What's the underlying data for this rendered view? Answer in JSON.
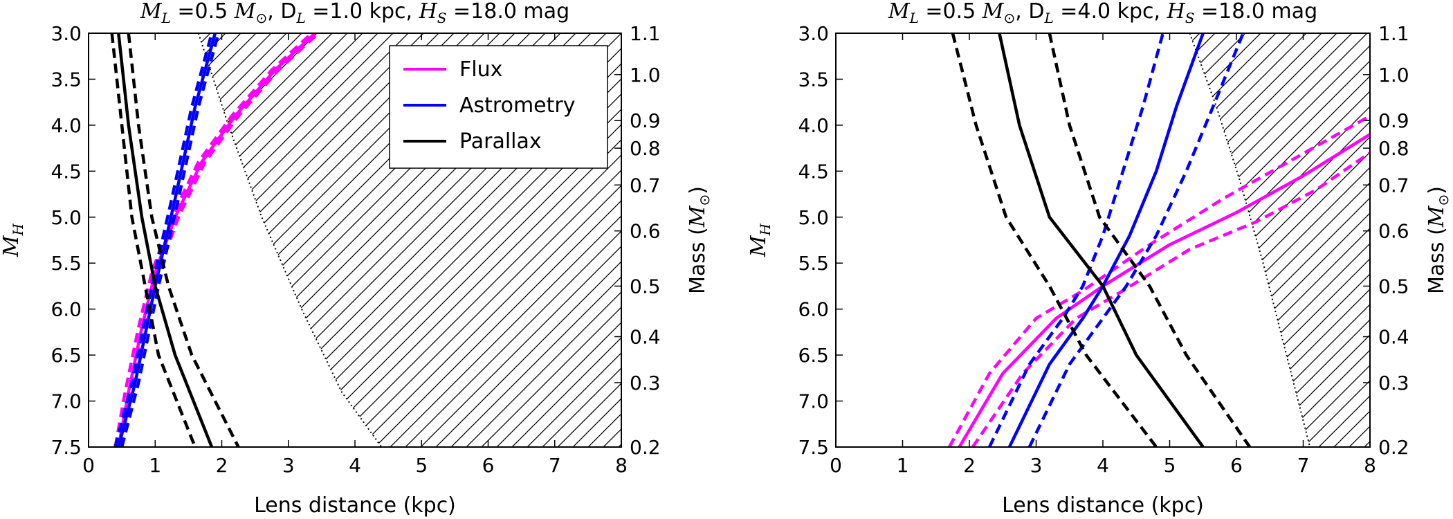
{
  "chart_data": [
    {
      "type": "line",
      "title": {
        "ml_sym": "M",
        "ml_sub": "L",
        "ml_val": " =0.5 ",
        "msun_sym": "M",
        "msun_sub": "⊙",
        "dl_sym": ", D",
        "dl_sub": "L",
        "dl_val": " =1.0 kpc, ",
        "hs_sym": "H",
        "hs_sub": "S",
        "hs_val": " =18.0 mag"
      },
      "xlabel": "Lens distance (kpc)",
      "ylabel_sym": "M",
      "ylabel_sub": "H",
      "y2label": "Mass (",
      "y2label_sym": "M",
      "y2label_sub": "⊙",
      "y2label_end": ")",
      "xlim": [
        0,
        8
      ],
      "ylim": [
        3.0,
        7.5
      ],
      "y_inverted": true,
      "x_ticks": [
        "0",
        "1",
        "2",
        "3",
        "4",
        "5",
        "6",
        "7",
        "8"
      ],
      "y_ticks": [
        "3.0",
        "3.5",
        "4.0",
        "4.5",
        "5.0",
        "5.5",
        "6.0",
        "6.5",
        "7.0",
        "7.5"
      ],
      "mass_ticks": [
        {
          "label": "1.1",
          "mh": 3.0
        },
        {
          "label": "1.0",
          "mh": 3.45
        },
        {
          "label": "0.9",
          "mh": 3.95
        },
        {
          "label": "0.8",
          "mh": 4.25
        },
        {
          "label": "0.7",
          "mh": 4.65
        },
        {
          "label": "0.6",
          "mh": 5.15
        },
        {
          "label": "0.5",
          "mh": 5.75
        },
        {
          "label": "0.4",
          "mh": 6.3
        },
        {
          "label": "0.3",
          "mh": 6.8
        },
        {
          "label": "0.2",
          "mh": 7.5
        }
      ],
      "legend": {
        "position": "upper-center",
        "entries": [
          {
            "label": "Flux",
            "color": "#ff00ff"
          },
          {
            "label": "Astrometry",
            "color": "#0000ff"
          },
          {
            "label": "Parallax",
            "color": "#000000"
          }
        ]
      },
      "excluded_region": {
        "boundary": [
          [
            1.65,
            3.0
          ],
          [
            2.1,
            4.0
          ],
          [
            2.6,
            5.0
          ],
          [
            3.2,
            6.0
          ],
          [
            3.8,
            6.9
          ],
          [
            4.4,
            7.5
          ]
        ]
      },
      "series": [
        {
          "name": "Flux",
          "color": "#ff00ff",
          "style": "solid",
          "points": [
            [
              0.45,
              7.5
            ],
            [
              0.6,
              6.9
            ],
            [
              0.8,
              6.2
            ],
            [
              1.0,
              5.6
            ],
            [
              1.3,
              5.0
            ],
            [
              1.7,
              4.4
            ],
            [
              2.2,
              3.9
            ],
            [
              2.8,
              3.4
            ],
            [
              3.4,
              3.0
            ]
          ]
        },
        {
          "name": "Flux",
          "color": "#ff00ff",
          "style": "dashed",
          "points": [
            [
              0.5,
              7.5
            ],
            [
              0.65,
              6.9
            ],
            [
              0.85,
              6.2
            ],
            [
              1.05,
              5.6
            ],
            [
              1.35,
              5.0
            ],
            [
              1.75,
              4.4
            ],
            [
              2.25,
              3.9
            ],
            [
              2.85,
              3.4
            ],
            [
              3.45,
              3.0
            ]
          ]
        },
        {
          "name": "Flux",
          "color": "#ff00ff",
          "style": "dashed",
          "points": [
            [
              0.4,
              7.5
            ],
            [
              0.55,
              6.9
            ],
            [
              0.75,
              6.2
            ],
            [
              0.95,
              5.6
            ],
            [
              1.25,
              5.0
            ],
            [
              1.65,
              4.4
            ],
            [
              2.15,
              3.9
            ],
            [
              2.75,
              3.4
            ],
            [
              3.35,
              3.0
            ]
          ]
        },
        {
          "name": "Astrometry",
          "color": "#0000ff",
          "style": "solid",
          "points": [
            [
              0.45,
              7.5
            ],
            [
              0.7,
              6.8
            ],
            [
              1.0,
              5.75
            ],
            [
              1.3,
              4.8
            ],
            [
              1.6,
              3.8
            ],
            [
              1.9,
              3.0
            ]
          ]
        },
        {
          "name": "Astrometry",
          "color": "#0000ff",
          "style": "dashed",
          "points": [
            [
              0.5,
              7.5
            ],
            [
              0.75,
              6.8
            ],
            [
              1.05,
              5.75
            ],
            [
              1.35,
              4.8
            ],
            [
              1.65,
              3.8
            ],
            [
              1.95,
              3.0
            ]
          ]
        },
        {
          "name": "Astrometry",
          "color": "#0000ff",
          "style": "dashed",
          "points": [
            [
              0.4,
              7.5
            ],
            [
              0.65,
              6.8
            ],
            [
              0.95,
              5.75
            ],
            [
              1.25,
              4.8
            ],
            [
              1.55,
              3.8
            ],
            [
              1.85,
              3.0
            ]
          ]
        },
        {
          "name": "Parallax",
          "color": "#000000",
          "style": "solid",
          "points": [
            [
              0.45,
              3.0
            ],
            [
              0.6,
              4.0
            ],
            [
              0.8,
              5.0
            ],
            [
              1.0,
              5.75
            ],
            [
              1.3,
              6.5
            ],
            [
              1.85,
              7.5
            ]
          ]
        },
        {
          "name": "Parallax",
          "color": "#000000",
          "style": "dashed",
          "points": [
            [
              0.35,
              3.0
            ],
            [
              0.5,
              4.0
            ],
            [
              0.65,
              5.0
            ],
            [
              0.85,
              5.75
            ],
            [
              1.05,
              6.5
            ],
            [
              1.6,
              7.5
            ]
          ]
        },
        {
          "name": "Parallax",
          "color": "#000000",
          "style": "dashed",
          "points": [
            [
              0.6,
              3.0
            ],
            [
              0.75,
              4.0
            ],
            [
              0.95,
              5.0
            ],
            [
              1.2,
              5.75
            ],
            [
              1.55,
              6.5
            ],
            [
              2.25,
              7.5
            ]
          ]
        }
      ]
    },
    {
      "type": "line",
      "title": {
        "ml_sym": "M",
        "ml_sub": "L",
        "ml_val": " =0.5 ",
        "msun_sym": "M",
        "msun_sub": "⊙",
        "dl_sym": ", D",
        "dl_sub": "L",
        "dl_val": " =4.0 kpc, ",
        "hs_sym": "H",
        "hs_sub": "S",
        "hs_val": " =18.0 mag"
      },
      "xlabel": "Lens distance (kpc)",
      "ylabel_sym": "M",
      "ylabel_sub": "H",
      "y2label": "Mass (",
      "y2label_sym": "M",
      "y2label_sub": "⊙",
      "y2label_end": ")",
      "xlim": [
        0,
        8
      ],
      "ylim": [
        3.0,
        7.5
      ],
      "y_inverted": true,
      "x_ticks": [
        "0",
        "1",
        "2",
        "3",
        "4",
        "5",
        "6",
        "7",
        "8"
      ],
      "y_ticks": [
        "3.0",
        "3.5",
        "4.0",
        "4.5",
        "5.0",
        "5.5",
        "6.0",
        "6.5",
        "7.0",
        "7.5"
      ],
      "mass_ticks": [
        {
          "label": "1.1",
          "mh": 3.0
        },
        {
          "label": "1.0",
          "mh": 3.45
        },
        {
          "label": "0.9",
          "mh": 3.95
        },
        {
          "label": "0.8",
          "mh": 4.25
        },
        {
          "label": "0.7",
          "mh": 4.65
        },
        {
          "label": "0.6",
          "mh": 5.15
        },
        {
          "label": "0.5",
          "mh": 5.75
        },
        {
          "label": "0.4",
          "mh": 6.3
        },
        {
          "label": "0.3",
          "mh": 6.8
        },
        {
          "label": "0.2",
          "mh": 7.5
        }
      ],
      "legend": null,
      "excluded_region": {
        "boundary": [
          [
            5.3,
            3.0
          ],
          [
            5.7,
            3.8
          ],
          [
            6.05,
            4.6
          ],
          [
            6.4,
            5.5
          ],
          [
            6.75,
            6.5
          ],
          [
            7.1,
            7.5
          ]
        ]
      },
      "series": [
        {
          "name": "Flux",
          "color": "#ff00ff",
          "style": "solid",
          "points": [
            [
              1.85,
              7.5
            ],
            [
              2.5,
              6.7
            ],
            [
              3.3,
              6.1
            ],
            [
              4.0,
              5.75
            ],
            [
              5.0,
              5.3
            ],
            [
              6.0,
              4.95
            ],
            [
              7.0,
              4.55
            ],
            [
              8.0,
              4.1
            ]
          ]
        },
        {
          "name": "Flux",
          "color": "#ff00ff",
          "style": "dashed",
          "points": [
            [
              1.7,
              7.5
            ],
            [
              2.3,
              6.7
            ],
            [
              3.0,
              6.1
            ],
            [
              3.7,
              5.8
            ],
            [
              4.7,
              5.3
            ],
            [
              5.8,
              4.8
            ],
            [
              6.9,
              4.35
            ],
            [
              8.0,
              3.9
            ]
          ]
        },
        {
          "name": "Flux",
          "color": "#ff00ff",
          "style": "dashed",
          "points": [
            [
              2.05,
              7.5
            ],
            [
              2.8,
              6.7
            ],
            [
              3.6,
              6.1
            ],
            [
              4.3,
              5.8
            ],
            [
              5.3,
              5.35
            ],
            [
              6.3,
              5.05
            ],
            [
              7.2,
              4.7
            ],
            [
              8.0,
              4.3
            ]
          ]
        },
        {
          "name": "Astrometry",
          "color": "#0000ff",
          "style": "solid",
          "points": [
            [
              2.6,
              7.5
            ],
            [
              3.2,
              6.6
            ],
            [
              3.7,
              6.1
            ],
            [
              4.0,
              5.75
            ],
            [
              4.4,
              5.2
            ],
            [
              4.8,
              4.5
            ],
            [
              5.1,
              3.8
            ],
            [
              5.5,
              3.0
            ]
          ]
        },
        {
          "name": "Astrometry",
          "color": "#0000ff",
          "style": "dashed",
          "points": [
            [
              2.3,
              7.5
            ],
            [
              2.9,
              6.6
            ],
            [
              3.4,
              6.1
            ],
            [
              3.7,
              5.75
            ],
            [
              4.0,
              5.2
            ],
            [
              4.3,
              4.5
            ],
            [
              4.6,
              3.8
            ],
            [
              4.9,
              3.0
            ]
          ]
        },
        {
          "name": "Astrometry",
          "color": "#0000ff",
          "style": "dashed",
          "points": [
            [
              2.9,
              7.5
            ],
            [
              3.5,
              6.6
            ],
            [
              4.0,
              6.1
            ],
            [
              4.35,
              5.75
            ],
            [
              4.8,
              5.2
            ],
            [
              5.25,
              4.5
            ],
            [
              5.65,
              3.8
            ],
            [
              6.1,
              3.0
            ]
          ]
        },
        {
          "name": "Parallax",
          "color": "#000000",
          "style": "solid",
          "points": [
            [
              2.45,
              3.0
            ],
            [
              2.75,
              4.0
            ],
            [
              3.2,
              5.0
            ],
            [
              4.0,
              5.75
            ],
            [
              4.5,
              6.5
            ],
            [
              5.5,
              7.5
            ]
          ]
        },
        {
          "name": "Parallax",
          "color": "#000000",
          "style": "dashed",
          "points": [
            [
              1.75,
              3.0
            ],
            [
              2.1,
              4.0
            ],
            [
              2.55,
              5.0
            ],
            [
              3.2,
              5.75
            ],
            [
              3.75,
              6.5
            ],
            [
              4.8,
              7.5
            ]
          ]
        },
        {
          "name": "Parallax",
          "color": "#000000",
          "style": "dashed",
          "points": [
            [
              3.2,
              3.0
            ],
            [
              3.5,
              4.0
            ],
            [
              3.95,
              5.0
            ],
            [
              4.7,
              5.75
            ],
            [
              5.25,
              6.5
            ],
            [
              6.2,
              7.5
            ]
          ]
        }
      ]
    }
  ]
}
